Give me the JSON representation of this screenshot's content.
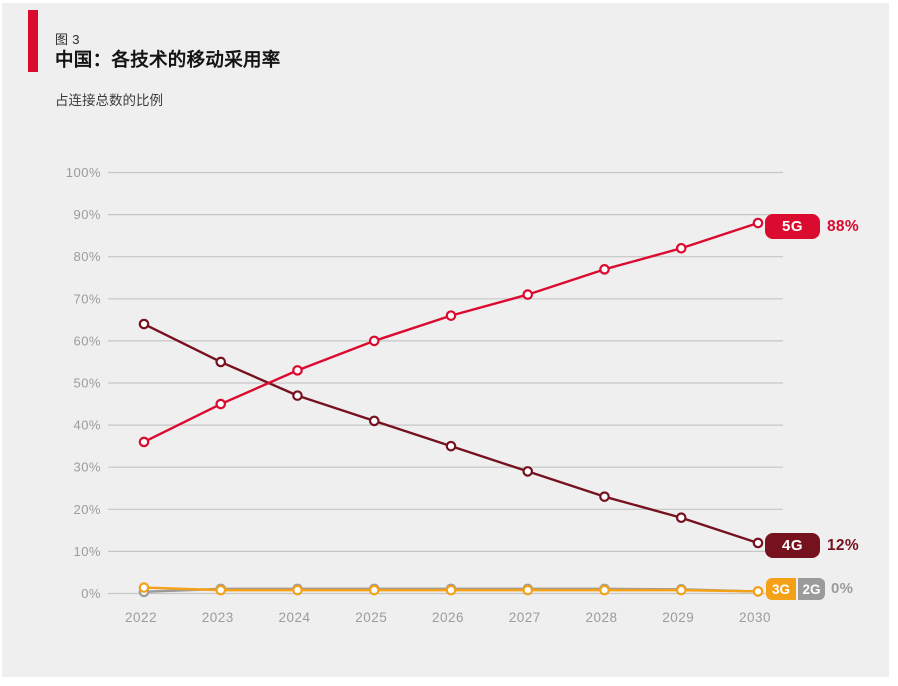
{
  "figure": {
    "label": "图 3"
  },
  "colors": {
    "accent": "#DB0A2F",
    "panel_background": "#EFEFEF",
    "gridline": "#C6C6C6",
    "axis_text": "#9C9CA0",
    "marker_fill": "#FFFFFF"
  },
  "chart_data": {
    "type": "line",
    "title": "中国：各技术的移动采用率",
    "subtitle": "占连接总数的比例",
    "x": [
      "2022",
      "2023",
      "2024",
      "2025",
      "2026",
      "2027",
      "2028",
      "2029",
      "2030"
    ],
    "y_ticks": [
      "0%",
      "10%",
      "20%",
      "30%",
      "40%",
      "50%",
      "60%",
      "70%",
      "80%",
      "90%",
      "100%"
    ],
    "ylim": [
      0,
      100
    ],
    "grid": "horizontal",
    "legend_position": "end-of-line-badges",
    "series": [
      {
        "name": "5G",
        "color": "#DB0A2F",
        "end_label": "88%",
        "values": [
          36,
          45,
          53,
          60,
          66,
          71,
          77,
          82,
          88
        ]
      },
      {
        "name": "4G",
        "color": "#76121E",
        "end_label": "12%",
        "values": [
          64,
          55,
          47,
          41,
          35,
          29,
          23,
          18,
          12
        ]
      },
      {
        "name": "3G",
        "color": "#F4A118",
        "end_label": "0%",
        "values": [
          1.4,
          0.8,
          0.8,
          0.8,
          0.8,
          0.8,
          0.8,
          0.8,
          0.5
        ]
      },
      {
        "name": "2G",
        "color": "#9B9B9B",
        "end_label": "0%",
        "values": [
          0.4,
          1.1,
          1.1,
          1.1,
          1.1,
          1.1,
          1.1,
          1.0,
          0.5
        ]
      }
    ],
    "combined_end_label": "0%"
  }
}
